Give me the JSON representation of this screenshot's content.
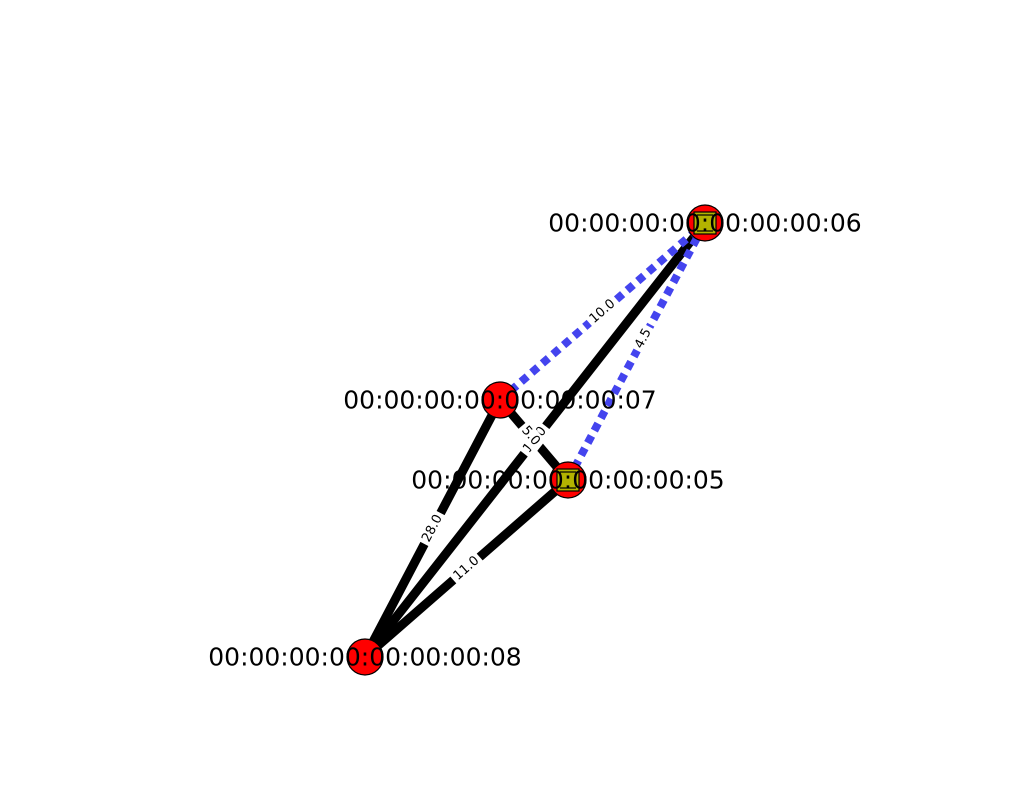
{
  "colors": {
    "solid_edge": "#000000",
    "dashed_edge": "#4444ee",
    "node_fill": "#ff0000",
    "switch_marker_fill": "#b3b300",
    "label_bg": "#ffffff"
  },
  "nodes": [
    {
      "id": "n6",
      "label": "00:00:00:00:00:00:00:06",
      "marker": "switch"
    },
    {
      "id": "n7",
      "label": "00:00:00:00:00:00:00:07",
      "marker": "host"
    },
    {
      "id": "n5",
      "label": "00:00:00:00:00:00:00:05",
      "marker": "switch"
    },
    {
      "id": "n8",
      "label": "00:00:00:00:00:00:00:08",
      "marker": "host"
    }
  ],
  "edges": [
    {
      "from": "n7",
      "to": "n6",
      "style": "dashed",
      "label": "10.0"
    },
    {
      "from": "n5",
      "to": "n6",
      "style": "dashed",
      "label": "4.5"
    },
    {
      "from": "n8",
      "to": "n6",
      "style": "solid",
      "label": "14.0"
    },
    {
      "from": "n8",
      "to": "n7",
      "style": "solid",
      "label": "28.0"
    },
    {
      "from": "n8",
      "to": "n5",
      "style": "solid",
      "label": "11.0"
    },
    {
      "from": "n7",
      "to": "n5",
      "style": "solid",
      "label": "5.0"
    }
  ]
}
